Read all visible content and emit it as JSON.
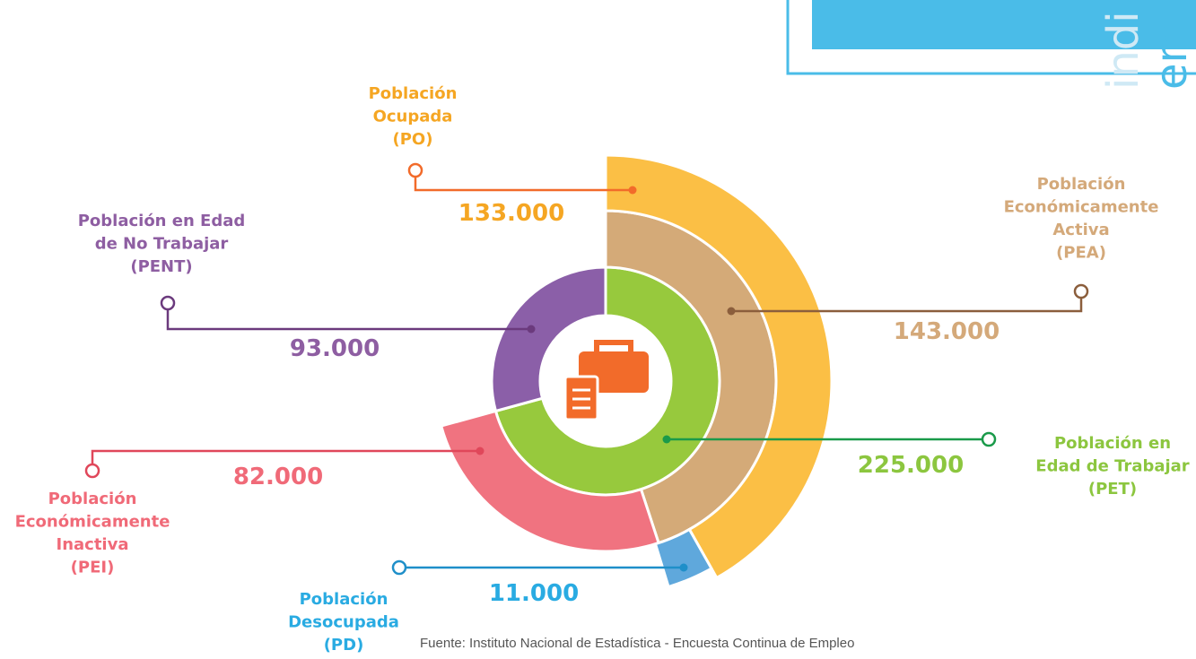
{
  "chart_data": {
    "type": "sunburst",
    "rings": [
      {
        "segments": [
          {
            "name": [
              "Población en",
              "Edad de Trabajar",
              "(PET)"
            ],
            "value": 225000,
            "value_label": "225.000",
            "color": "#97c93d"
          },
          {
            "name": [
              "Población en Edad",
              "de No Trabajar",
              "(PENT)"
            ],
            "value": 93000,
            "value_label": "93.000",
            "color": "#8b5fa8"
          }
        ]
      },
      {
        "segments": [
          {
            "name": [
              "Población",
              "Económicamente",
              "Activa",
              "(PEA)"
            ],
            "value": 143000,
            "value_label": "143.000",
            "color": "#d4aa78"
          },
          {
            "name": [
              "Población",
              "Económicamente",
              "Inactiva",
              "(PEI)"
            ],
            "value": 82000,
            "value_label": "82.000",
            "color": "#f07380"
          }
        ]
      },
      {
        "segments": [
          {
            "name": [
              "Población",
              "Ocupada",
              "(PO)"
            ],
            "value": 133000,
            "value_label": "133.000",
            "color": "#fbbf45"
          },
          {
            "name": [
              "Población",
              "Desocupada",
              "(PD)"
            ],
            "value": 11000,
            "value_label": "11.000",
            "color": "#5fa8dc"
          }
        ]
      }
    ],
    "source": "Fuente: Instituto Nacional de Estadística - Encuesta Continua de Empleo",
    "corner_texts": [
      "indi",
      "em"
    ]
  }
}
